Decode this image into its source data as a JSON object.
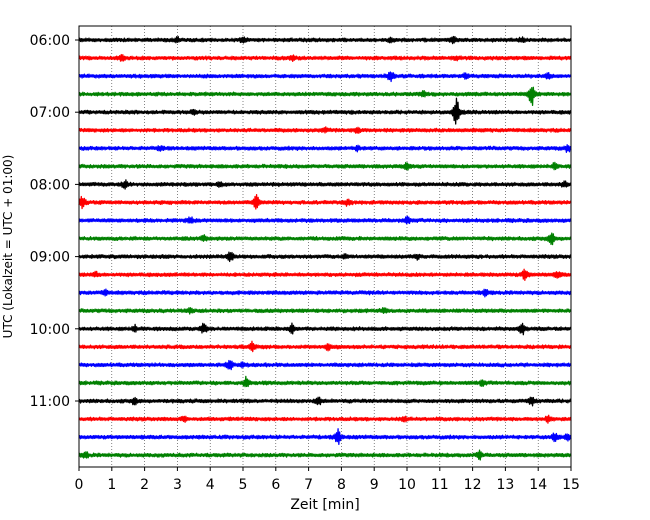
{
  "chart_data": {
    "type": "line",
    "title": "",
    "xlabel": "Zeit  [min]",
    "ylabel": "UTC (Lokalzeit = UTC + 01:00)",
    "xlim": [
      0,
      15
    ],
    "x_ticks": [
      0,
      1,
      2,
      3,
      4,
      5,
      6,
      7,
      8,
      9,
      10,
      11,
      12,
      13,
      14,
      15
    ],
    "y_tick_labels": [
      "06:00",
      "07:00",
      "08:00",
      "09:00",
      "10:00",
      "11:00"
    ],
    "grid": "vertical dotted",
    "trace_colors": [
      "#000000",
      "#ff0000",
      "#0000ff",
      "#008000"
    ],
    "trace_count": 24,
    "trace_interval_min": 15,
    "series": [
      {
        "start": "06:00",
        "events": [
          [
            3.0,
            0.3
          ],
          [
            5.0,
            0.3
          ],
          [
            9.5,
            0.3
          ],
          [
            11.4,
            0.45
          ],
          [
            13.5,
            0.3
          ]
        ]
      },
      {
        "start": "06:15",
        "events": [
          [
            1.3,
            0.35
          ],
          [
            6.5,
            0.3
          ],
          [
            11.5,
            0.3
          ]
        ]
      },
      {
        "start": "06:30",
        "events": [
          [
            9.5,
            0.7
          ],
          [
            11.8,
            0.3
          ],
          [
            14.3,
            0.35
          ]
        ]
      },
      {
        "start": "06:45",
        "events": [
          [
            10.5,
            0.35
          ],
          [
            13.8,
            1.6
          ]
        ]
      },
      {
        "start": "07:00",
        "events": [
          [
            11.5,
            2.0
          ],
          [
            3.5,
            0.3
          ]
        ]
      },
      {
        "start": "07:15",
        "events": [
          [
            7.5,
            0.3
          ],
          [
            8.5,
            0.45
          ]
        ]
      },
      {
        "start": "07:30",
        "events": [
          [
            2.5,
            0.3
          ],
          [
            8.5,
            0.3
          ],
          [
            14.9,
            0.45
          ]
        ]
      },
      {
        "start": "07:45",
        "events": [
          [
            10.0,
            0.45
          ],
          [
            14.5,
            0.35
          ]
        ]
      },
      {
        "start": "08:00",
        "events": [
          [
            1.4,
            0.45
          ],
          [
            4.3,
            0.35
          ],
          [
            14.8,
            0.4
          ]
        ]
      },
      {
        "start": "08:15",
        "events": [
          [
            0.1,
            0.8
          ],
          [
            5.4,
            0.9
          ],
          [
            8.2,
            0.4
          ]
        ]
      },
      {
        "start": "08:30",
        "events": [
          [
            3.4,
            0.45
          ],
          [
            10.0,
            0.5
          ]
        ]
      },
      {
        "start": "08:45",
        "events": [
          [
            3.8,
            0.35
          ],
          [
            14.4,
            0.9
          ]
        ]
      },
      {
        "start": "09:00",
        "events": [
          [
            4.6,
            0.85
          ],
          [
            8.1,
            0.3
          ],
          [
            10.3,
            0.3
          ]
        ]
      },
      {
        "start": "09:15",
        "events": [
          [
            0.5,
            0.3
          ],
          [
            13.6,
            0.75
          ],
          [
            14.6,
            0.35
          ]
        ]
      },
      {
        "start": "09:30",
        "events": [
          [
            12.4,
            0.55
          ],
          [
            0.8,
            0.3
          ]
        ]
      },
      {
        "start": "09:45",
        "events": [
          [
            9.3,
            0.35
          ],
          [
            3.4,
            0.3
          ]
        ]
      },
      {
        "start": "10:00",
        "events": [
          [
            1.7,
            0.4
          ],
          [
            3.8,
            0.6
          ],
          [
            6.5,
            0.6
          ],
          [
            13.5,
            0.85
          ]
        ]
      },
      {
        "start": "10:15",
        "events": [
          [
            5.3,
            0.6
          ],
          [
            7.6,
            0.4
          ]
        ]
      },
      {
        "start": "10:30",
        "events": [
          [
            4.6,
            0.6
          ],
          [
            5.0,
            0.4
          ]
        ]
      },
      {
        "start": "10:45",
        "events": [
          [
            5.1,
            0.75
          ],
          [
            12.3,
            0.35
          ]
        ]
      },
      {
        "start": "11:00",
        "events": [
          [
            1.7,
            0.45
          ],
          [
            7.3,
            0.55
          ],
          [
            13.8,
            0.5
          ]
        ]
      },
      {
        "start": "11:15",
        "events": [
          [
            3.2,
            0.35
          ],
          [
            9.9,
            0.35
          ],
          [
            14.3,
            0.35
          ]
        ]
      },
      {
        "start": "11:30",
        "events": [
          [
            7.9,
            1.0
          ],
          [
            14.5,
            0.6
          ],
          [
            14.9,
            0.55
          ]
        ]
      },
      {
        "start": "11:45",
        "events": [
          [
            0.2,
            0.4
          ],
          [
            12.2,
            0.6
          ]
        ]
      }
    ]
  }
}
